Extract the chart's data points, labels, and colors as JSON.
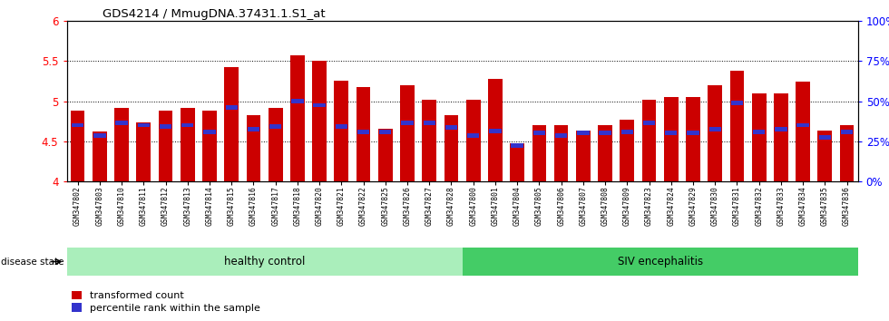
{
  "title": "GDS4214 / MmugDNA.37431.1.S1_at",
  "samples": [
    "GSM347802",
    "GSM347803",
    "GSM347810",
    "GSM347811",
    "GSM347812",
    "GSM347813",
    "GSM347814",
    "GSM347815",
    "GSM347816",
    "GSM347817",
    "GSM347818",
    "GSM347820",
    "GSM347821",
    "GSM347822",
    "GSM347825",
    "GSM347826",
    "GSM347827",
    "GSM347828",
    "GSM347800",
    "GSM347801",
    "GSM347804",
    "GSM347805",
    "GSM347806",
    "GSM347807",
    "GSM347808",
    "GSM347809",
    "GSM347823",
    "GSM347824",
    "GSM347829",
    "GSM347830",
    "GSM347831",
    "GSM347832",
    "GSM347833",
    "GSM347834",
    "GSM347835",
    "GSM347836"
  ],
  "red_values": [
    4.88,
    4.62,
    4.92,
    4.73,
    4.88,
    4.92,
    4.88,
    5.42,
    4.83,
    4.92,
    5.57,
    5.5,
    5.26,
    5.17,
    4.65,
    5.2,
    5.02,
    4.83,
    5.02,
    5.28,
    4.47,
    4.7,
    4.7,
    4.63,
    4.7,
    4.77,
    5.02,
    5.05,
    5.05,
    5.2,
    5.38,
    5.1,
    5.1,
    5.24,
    4.63,
    4.7
  ],
  "blue_values": [
    4.7,
    4.57,
    4.73,
    4.7,
    4.68,
    4.7,
    4.62,
    4.92,
    4.65,
    4.68,
    5.0,
    4.95,
    4.68,
    4.62,
    4.62,
    4.73,
    4.73,
    4.67,
    4.57,
    4.63,
    4.45,
    4.6,
    4.57,
    4.6,
    4.6,
    4.62,
    4.73,
    4.6,
    4.6,
    4.65,
    4.98,
    4.62,
    4.65,
    4.7,
    4.55,
    4.62
  ],
  "healthy_count": 18,
  "ylim_left": [
    4.0,
    6.0
  ],
  "ylim_right": [
    0,
    100
  ],
  "yticks_left": [
    4.0,
    4.5,
    5.0,
    5.5,
    6.0
  ],
  "yticks_right": [
    0,
    25,
    50,
    75,
    100
  ],
  "ytick_labels_right": [
    "0%",
    "25%",
    "50%",
    "75%",
    "100%"
  ],
  "bar_color": "#cc0000",
  "blue_color": "#3333cc",
  "healthy_color": "#aaeebb",
  "siv_color": "#44cc66",
  "healthy_label": "healthy control",
  "siv_label": "SIV encephalitis",
  "disease_state_label": "disease state",
  "legend_red": "transformed count",
  "legend_blue": "percentile rank within the sample",
  "bar_width": 0.65,
  "figsize": [
    9.8,
    3.54
  ],
  "dpi": 100
}
